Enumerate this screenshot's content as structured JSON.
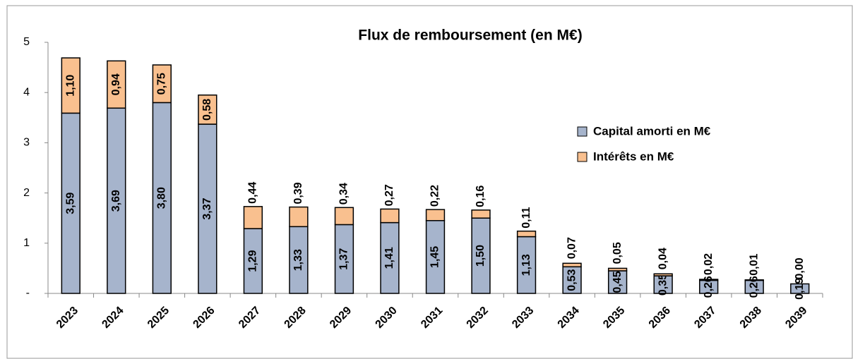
{
  "chart_data": {
    "type": "bar",
    "stacked": true,
    "title": "Flux de remboursement (en M€)",
    "categories": [
      "2023",
      "2024",
      "2025",
      "2026",
      "2027",
      "2028",
      "2029",
      "2030",
      "2031",
      "2032",
      "2033",
      "2034",
      "2035",
      "2036",
      "2037",
      "2038",
      "2039"
    ],
    "series": [
      {
        "name": "Capital amorti en M€",
        "color": "#a6b4cc",
        "values": [
          3.59,
          3.69,
          3.8,
          3.37,
          1.29,
          1.33,
          1.37,
          1.41,
          1.45,
          1.5,
          1.13,
          0.53,
          0.45,
          0.35,
          0.26,
          0.26,
          0.19
        ],
        "value_labels": [
          "3,59",
          "3,69",
          "3,80",
          "3,37",
          "1,29",
          "1,33",
          "1,37",
          "1,41",
          "1,45",
          "1,50",
          "1,13",
          "0,53",
          "0,45",
          "0,35",
          "0,26",
          "0,26",
          "0,19"
        ]
      },
      {
        "name": "Intérêts en M€",
        "color": "#f9c08f",
        "values": [
          1.1,
          0.94,
          0.75,
          0.58,
          0.44,
          0.39,
          0.34,
          0.27,
          0.22,
          0.16,
          0.11,
          0.07,
          0.05,
          0.04,
          0.02,
          0.01,
          0.0
        ],
        "value_labels": [
          "1,10",
          "0,94",
          "0,75",
          "0,58",
          "0,44",
          "0,39",
          "0,34",
          "0,27",
          "0,22",
          "0,16",
          "0,11",
          "0,07",
          "0,05",
          "0,04",
          "0,02",
          "0,01",
          "0,00"
        ]
      }
    ],
    "ylim": [
      0,
      5
    ],
    "yticks": [
      {
        "value": 0,
        "label": "-"
      },
      1,
      2,
      3,
      4,
      5
    ],
    "legend": "right"
  }
}
